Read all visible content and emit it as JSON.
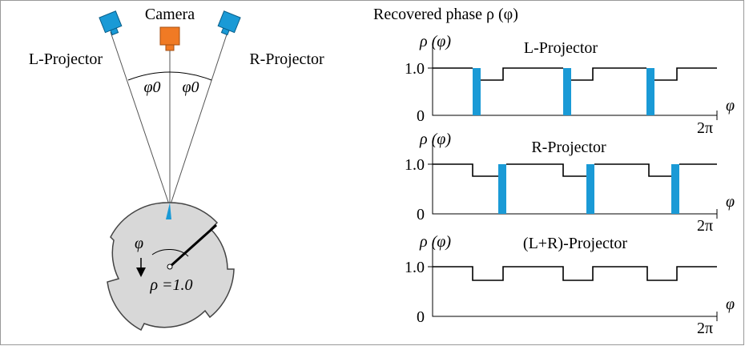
{
  "left": {
    "camera": "Camera",
    "l_projector": "L-Projector",
    "r_projector": "R-Projector",
    "angle_left": "φ0",
    "angle_right": "φ0",
    "rotation": "φ",
    "radius": "ρ =1.0"
  },
  "right": {
    "title": "Recovered phase ρ (φ)",
    "panels": [
      {
        "y_label": "ρ (φ)",
        "title": "L-Projector",
        "y_high": "1.0",
        "y_zero": "0",
        "x_label": "φ",
        "x_end": "2π"
      },
      {
        "y_label": "ρ (φ)",
        "title": "R-Projector",
        "y_high": "1.0",
        "y_zero": "0",
        "x_label": "φ",
        "x_end": "2π"
      },
      {
        "y_label": "ρ (φ)",
        "title": "(L+R)-Projector",
        "y_high": "1.0",
        "y_zero": "0",
        "x_label": "φ",
        "x_end": "2π"
      }
    ]
  }
}
